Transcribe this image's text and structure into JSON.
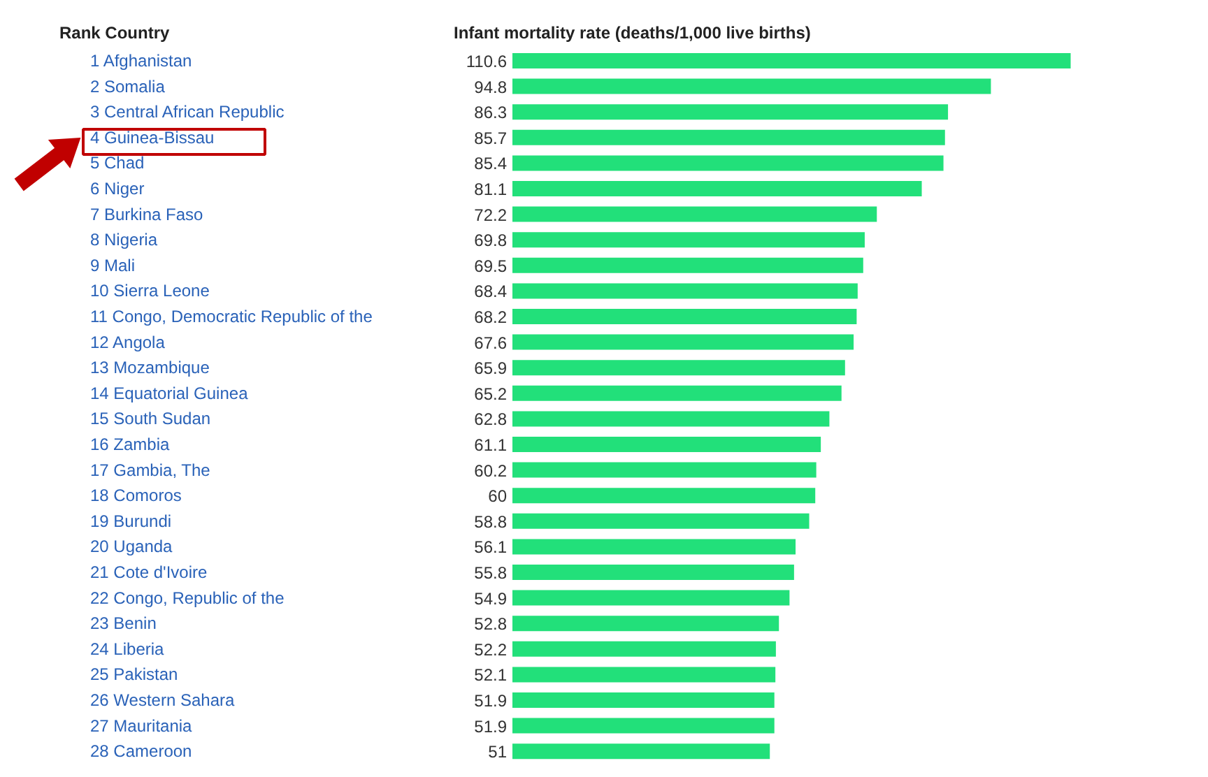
{
  "chart_data": {
    "type": "bar",
    "orientation": "horizontal",
    "xlabel": "Infant mortality rate (deaths/1,000 live births)",
    "annotations": [
      "Rank Country"
    ],
    "color": "#22e07a",
    "data_labels": true,
    "grid": false,
    "categories": [
      "1 Afghanistan",
      "2 Somalia",
      "3 Central African Republic",
      "4 Guinea-Bissau",
      "5 Chad",
      "6 Niger",
      "7 Burkina Faso",
      "8 Nigeria",
      "9 Mali",
      "10 Sierra Leone",
      "11 Congo, Democratic Republic of the",
      "12 Angola",
      "13 Mozambique",
      "14 Equatorial Guinea",
      "15 South Sudan",
      "16 Zambia",
      "17 Gambia, The",
      "18 Comoros",
      "19 Burundi",
      "20 Uganda",
      "21 Cote d'Ivoire",
      "22 Congo, Republic of the",
      "23 Benin",
      "24 Liberia",
      "25 Pakistan",
      "26 Western Sahara",
      "27 Mauritania",
      "28 Cameroon"
    ],
    "values": [
      110.6,
      94.8,
      86.3,
      85.7,
      85.4,
      81.1,
      72.2,
      69.8,
      69.5,
      68.4,
      68.2,
      67.6,
      65.9,
      65.2,
      62.8,
      61.1,
      60.2,
      60,
      58.8,
      56.1,
      55.8,
      54.9,
      52.8,
      52.2,
      52.1,
      51.9,
      51.9,
      51
    ]
  }
}
